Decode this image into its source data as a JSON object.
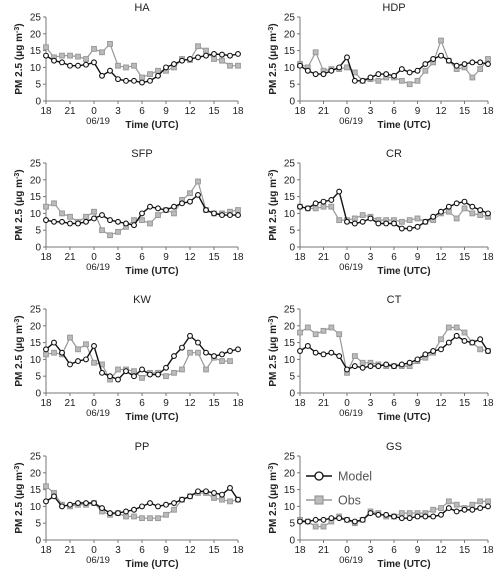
{
  "figure": {
    "ylabel_main": "PM 2.5 (μg m",
    "ylabel_sup": "-3",
    "ylabel_close": ")",
    "xlabel": "Time (UTC)",
    "date_label": "06/19"
  },
  "legend": [
    {
      "name": "Model",
      "color": "#111111",
      "marker_fill": "#ffffff"
    },
    {
      "name": "Obs",
      "color": "#999999",
      "marker_fill": "#bbbbbb"
    }
  ],
  "chart_data": [
    {
      "type": "line",
      "title": "HA",
      "x": [
        0,
        1,
        2,
        3,
        4,
        5,
        6,
        7,
        8,
        9,
        10,
        11,
        12,
        13,
        14,
        15,
        16,
        17,
        18,
        19,
        20,
        21,
        22,
        23,
        24
      ],
      "xticks": [
        "18",
        "21",
        "0",
        "3",
        "6",
        "9",
        "12",
        "15",
        "18"
      ],
      "xtick_positions": [
        0,
        3,
        6,
        9,
        12,
        15,
        18,
        21,
        24
      ],
      "ylim": [
        0,
        25
      ],
      "yticks": [
        0,
        5,
        10,
        15,
        20,
        25
      ],
      "grid": false,
      "series": [
        {
          "name": "Model",
          "values": [
            13.5,
            12,
            11.5,
            10.5,
            10.5,
            10.8,
            11.5,
            7.5,
            9,
            6.5,
            6,
            6,
            5.5,
            6,
            7.5,
            10,
            11,
            12,
            12.5,
            13,
            13.5,
            14,
            13.8,
            13.5,
            14
          ]
        },
        {
          "name": "Obs",
          "values": [
            16,
            13,
            13.5,
            13.5,
            13.2,
            12.5,
            15.5,
            14.5,
            17,
            10.5,
            10,
            10.5,
            7,
            8,
            9,
            9,
            10,
            12.5,
            12.2,
            16.3,
            15,
            12.5,
            12,
            10.5,
            10.5
          ]
        }
      ]
    },
    {
      "type": "line",
      "title": "HDP",
      "x": [
        0,
        1,
        2,
        3,
        4,
        5,
        6,
        7,
        8,
        9,
        10,
        11,
        12,
        13,
        14,
        15,
        16,
        17,
        18,
        19,
        20,
        21,
        22,
        23,
        24
      ],
      "xticks": [
        "18",
        "21",
        "0",
        "3",
        "6",
        "9",
        "12",
        "15",
        "18"
      ],
      "xtick_positions": [
        0,
        3,
        6,
        9,
        12,
        15,
        18,
        21,
        24
      ],
      "ylim": [
        0,
        25
      ],
      "yticks": [
        0,
        5,
        10,
        15,
        20,
        25
      ],
      "grid": false,
      "series": [
        {
          "name": "Model",
          "values": [
            10.5,
            9,
            8,
            8,
            9,
            10,
            13,
            6,
            6,
            7,
            8,
            8,
            7.5,
            9.5,
            8.5,
            9,
            11,
            12.5,
            13.5,
            12,
            10.5,
            11,
            11.5,
            11.5,
            11
          ]
        },
        {
          "name": "Obs",
          "values": [
            11,
            10,
            14.5,
            9,
            9.5,
            9.5,
            10,
            8.5,
            6,
            6.5,
            6,
            7,
            7,
            6,
            5,
            6,
            9,
            11.5,
            18,
            12,
            9.5,
            10,
            7,
            9.5,
            12.5
          ]
        }
      ]
    },
    {
      "type": "line",
      "title": "SFP",
      "x": [
        0,
        1,
        2,
        3,
        4,
        5,
        6,
        7,
        8,
        9,
        10,
        11,
        12,
        13,
        14,
        15,
        16,
        17,
        18,
        19,
        20,
        21,
        22,
        23,
        24
      ],
      "xticks": [
        "18",
        "21",
        "0",
        "3",
        "6",
        "9",
        "12",
        "15",
        "18"
      ],
      "xtick_positions": [
        0,
        3,
        6,
        9,
        12,
        15,
        18,
        21,
        24
      ],
      "ylim": [
        0,
        25
      ],
      "yticks": [
        0,
        5,
        10,
        15,
        20,
        25
      ],
      "grid": false,
      "series": [
        {
          "name": "Model",
          "values": [
            8,
            7.5,
            7.5,
            7,
            7,
            7.5,
            8.5,
            9.5,
            8,
            7.5,
            7,
            6.5,
            10,
            12,
            11.5,
            11,
            12,
            13,
            13.5,
            15.5,
            11,
            10,
            9.5,
            9.5,
            9.5
          ]
        },
        {
          "name": "Obs",
          "values": [
            12,
            13,
            10,
            9,
            7.5,
            9,
            10.5,
            5,
            3.5,
            4.5,
            6,
            8,
            8,
            7,
            9.5,
            11,
            10,
            14,
            16,
            19.5,
            11,
            10,
            10,
            10.5,
            11
          ]
        }
      ]
    },
    {
      "type": "line",
      "title": "CR",
      "x": [
        0,
        1,
        2,
        3,
        4,
        5,
        6,
        7,
        8,
        9,
        10,
        11,
        12,
        13,
        14,
        15,
        16,
        17,
        18,
        19,
        20,
        21,
        22,
        23,
        24
      ],
      "xticks": [
        "18",
        "21",
        "0",
        "3",
        "6",
        "9",
        "12",
        "15",
        "18"
      ],
      "xtick_positions": [
        0,
        3,
        6,
        9,
        12,
        15,
        18,
        21,
        24
      ],
      "ylim": [
        0,
        25
      ],
      "yticks": [
        0,
        5,
        10,
        15,
        20,
        25
      ],
      "grid": false,
      "series": [
        {
          "name": "Model",
          "values": [
            12,
            11.5,
            13,
            13.5,
            14,
            16.5,
            7.5,
            7,
            7.5,
            8.5,
            7,
            7,
            7,
            5.5,
            5.5,
            6,
            7.5,
            9,
            10.5,
            12,
            13,
            13.5,
            12,
            11,
            10
          ]
        },
        {
          "name": "Obs",
          "values": [
            12,
            11.5,
            11.5,
            12,
            12,
            8,
            8,
            8.5,
            9.5,
            9,
            8,
            8,
            8,
            7.5,
            8,
            8.5,
            7.5,
            8,
            10,
            10.5,
            8.5,
            11.5,
            10,
            9.5,
            9
          ]
        }
      ]
    },
    {
      "type": "line",
      "title": "KW",
      "x": [
        0,
        1,
        2,
        3,
        4,
        5,
        6,
        7,
        8,
        9,
        10,
        11,
        12,
        13,
        14,
        15,
        16,
        17,
        18,
        19,
        20,
        21,
        22,
        23,
        24
      ],
      "xticks": [
        "18",
        "21",
        "0",
        "3",
        "6",
        "9",
        "12",
        "15",
        "18"
      ],
      "xtick_positions": [
        0,
        3,
        6,
        9,
        12,
        15,
        18,
        21,
        24
      ],
      "ylim": [
        0,
        25
      ],
      "yticks": [
        0,
        5,
        10,
        15,
        20,
        25
      ],
      "grid": false,
      "series": [
        {
          "name": "Model",
          "values": [
            13,
            15,
            12,
            8.5,
            9.5,
            10,
            14,
            6,
            5,
            4,
            6.5,
            5,
            7,
            5.5,
            5.5,
            7.5,
            11,
            13.5,
            17,
            15,
            12,
            11,
            11.5,
            12.5,
            13
          ]
        },
        {
          "name": "Obs",
          "values": [
            11.5,
            12,
            11.5,
            16.5,
            13,
            14.5,
            9,
            8.5,
            4,
            7,
            7,
            6.5,
            4.5,
            6,
            6,
            5,
            6,
            7,
            12,
            12,
            7,
            10.5,
            9.5,
            9.5,
            null
          ]
        }
      ]
    },
    {
      "type": "line",
      "title": "CT",
      "x": [
        0,
        1,
        2,
        3,
        4,
        5,
        6,
        7,
        8,
        9,
        10,
        11,
        12,
        13,
        14,
        15,
        16,
        17,
        18,
        19,
        20,
        21,
        22,
        23,
        24
      ],
      "xticks": [
        "18",
        "21",
        "0",
        "3",
        "6",
        "9",
        "12",
        "15",
        "18"
      ],
      "xtick_positions": [
        0,
        3,
        6,
        9,
        12,
        15,
        18,
        21,
        24
      ],
      "ylim": [
        0,
        25
      ],
      "yticks": [
        0,
        5,
        10,
        15,
        20,
        25
      ],
      "grid": false,
      "series": [
        {
          "name": "Model",
          "values": [
            12.5,
            14,
            12,
            11.5,
            12,
            11,
            7,
            8,
            7.5,
            8,
            8,
            8.5,
            8,
            8.5,
            9,
            10,
            11.5,
            12.5,
            13,
            15,
            17,
            15.5,
            15,
            16,
            12.5
          ]
        },
        {
          "name": "Obs",
          "values": [
            18,
            19.5,
            17.5,
            18.5,
            19.5,
            17.5,
            6,
            11,
            9,
            9,
            8.5,
            8,
            8,
            8,
            8,
            9.5,
            10.5,
            12,
            16,
            19.5,
            19.5,
            18,
            15,
            13,
            12.5
          ]
        }
      ]
    },
    {
      "type": "line",
      "title": "PP",
      "x": [
        0,
        1,
        2,
        3,
        4,
        5,
        6,
        7,
        8,
        9,
        10,
        11,
        12,
        13,
        14,
        15,
        16,
        17,
        18,
        19,
        20,
        21,
        22,
        23,
        24
      ],
      "xticks": [
        "18",
        "21",
        "0",
        "3",
        "6",
        "9",
        "12",
        "15",
        "18"
      ],
      "xtick_positions": [
        0,
        3,
        6,
        9,
        12,
        15,
        18,
        21,
        24
      ],
      "ylim": [
        0,
        25
      ],
      "yticks": [
        0,
        5,
        10,
        15,
        20,
        25
      ],
      "grid": false,
      "series": [
        {
          "name": "Model",
          "values": [
            11.5,
            13,
            10,
            10.5,
            11,
            11,
            11,
            9.5,
            8,
            8,
            8.5,
            9,
            10,
            11,
            10,
            10.5,
            11,
            12,
            13,
            14.5,
            14.5,
            14,
            13.5,
            15.5,
            12
          ]
        },
        {
          "name": "Obs",
          "values": [
            16,
            14,
            10.5,
            10,
            10.5,
            10.5,
            11,
            8.5,
            7.5,
            8,
            7,
            7,
            6.5,
            6.5,
            6.5,
            7.5,
            9,
            12,
            13,
            14,
            14,
            12.5,
            12,
            11.5,
            12
          ]
        }
      ]
    },
    {
      "type": "line",
      "title": "GS",
      "x": [
        0,
        1,
        2,
        3,
        4,
        5,
        6,
        7,
        8,
        9,
        10,
        11,
        12,
        13,
        14,
        15,
        16,
        17,
        18,
        19,
        20,
        21,
        22,
        23,
        24
      ],
      "xticks": [
        "18",
        "21",
        "0",
        "3",
        "6",
        "9",
        "12",
        "15",
        "18"
      ],
      "xtick_positions": [
        0,
        3,
        6,
        9,
        12,
        15,
        18,
        21,
        24
      ],
      "ylim": [
        0,
        25
      ],
      "yticks": [
        0,
        5,
        10,
        15,
        20,
        25
      ],
      "grid": false,
      "series": [
        {
          "name": "Model",
          "values": [
            5.5,
            5.5,
            6,
            6,
            6.5,
            6.5,
            6,
            5.5,
            6,
            8,
            7.5,
            7.5,
            7,
            6.5,
            6.5,
            7,
            7,
            7,
            7.5,
            9.5,
            8.5,
            9,
            9,
            9.5,
            10
          ]
        },
        {
          "name": "Obs",
          "values": [
            6,
            5.5,
            4,
            4,
            5.5,
            7,
            6,
            5,
            6,
            8.5,
            8,
            7,
            7,
            8,
            8,
            8,
            8,
            9,
            9.5,
            11.5,
            10.5,
            9.5,
            10.5,
            11.5,
            11.5
          ]
        }
      ]
    }
  ]
}
